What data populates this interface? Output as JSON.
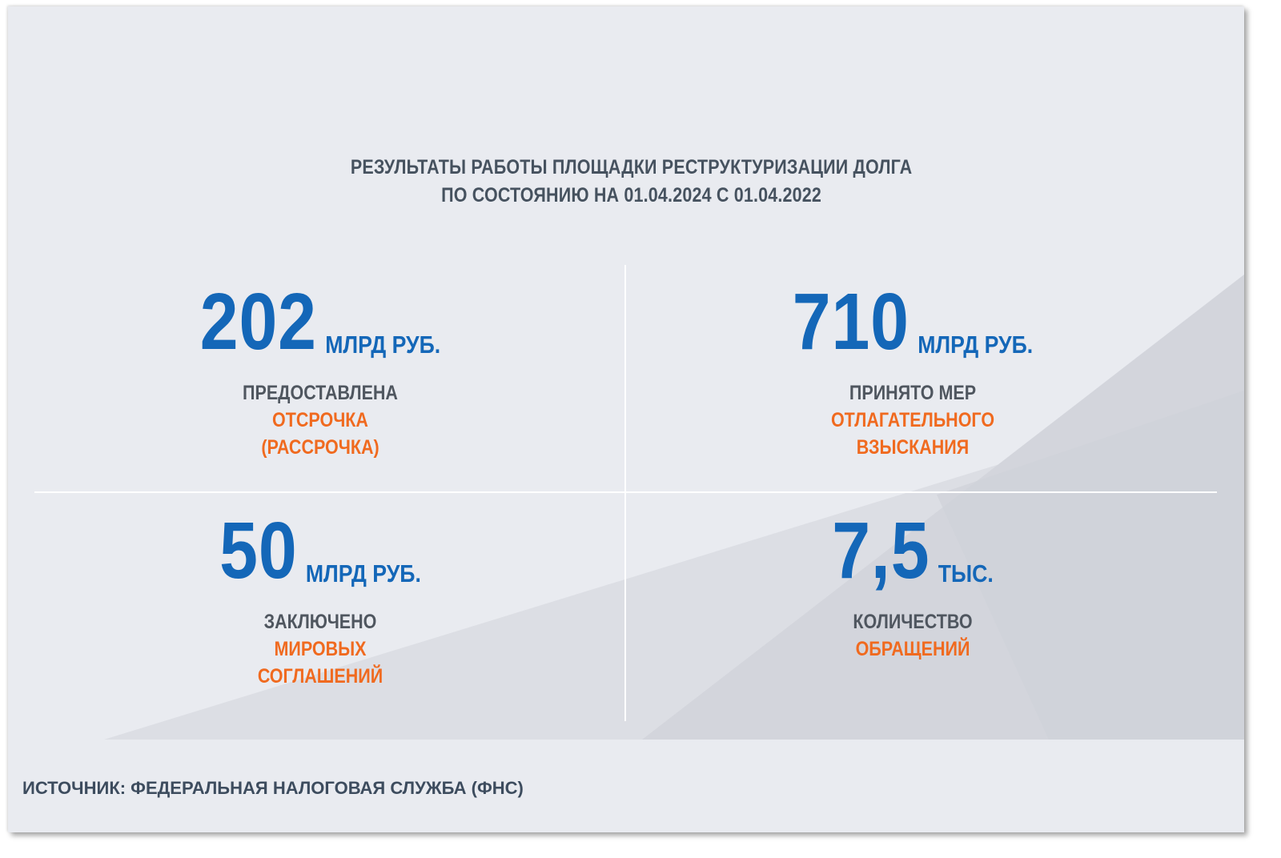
{
  "title": {
    "line1": "РЕЗУЛЬТАТЫ РАБОТЫ ПЛОЩАДКИ РЕСТРУКТУРИЗАЦИИ ДОЛГА",
    "line2": "ПО СОСТОЯНИЮ НА 01.04.2024 С 01.04.2022"
  },
  "stats": [
    {
      "value": "202",
      "unit": "МЛРД РУБ.",
      "label_gray": "ПРЕДОСТАВЛЕНА",
      "label_orange_1": "ОТСРОЧКА",
      "label_orange_2": "(РАССРОЧКА)"
    },
    {
      "value": "710",
      "unit": "МЛРД РУБ.",
      "label_gray": "ПРИНЯТО МЕР",
      "label_orange_1": "ОТЛАГАТЕЛЬНОГО",
      "label_orange_2": "ВЗЫСКАНИЯ"
    },
    {
      "value": "50",
      "unit": "МЛРД РУБ.",
      "label_gray": "ЗАКЛЮЧЕНО",
      "label_orange_1": "МИРОВЫХ",
      "label_orange_2": "СОГЛАШЕНИЙ"
    },
    {
      "value": "7,5",
      "unit": "ТЫС.",
      "label_gray": "КОЛИЧЕСТВО",
      "label_orange_1": "ОБРАЩЕНИЙ"
    }
  ],
  "source": "ИСТОЧНИК: ФЕДЕРАЛЬНАЯ НАЛОГОВАЯ СЛУЖБА (ФНС)",
  "colors": {
    "background": "#e9ebf0",
    "value_blue": "#1467b8",
    "label_orange": "#f06a1f",
    "label_gray": "#4f565f",
    "title_gray": "#46525f"
  }
}
